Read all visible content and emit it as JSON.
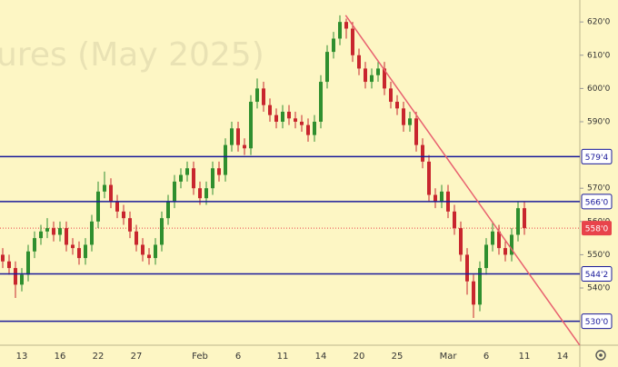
{
  "chart_data": {
    "type": "candlestick",
    "watermark": "ures (May 2025)",
    "categories": [
      null,
      null,
      null,
      "13",
      null,
      null,
      null,
      null,
      null,
      "16",
      null,
      null,
      null,
      null,
      null,
      "22",
      null,
      null,
      null,
      null,
      null,
      "27",
      null,
      null,
      null,
      null,
      null,
      null,
      null,
      null,
      null,
      "Feb",
      null,
      null,
      null,
      null,
      null,
      "6",
      null,
      null,
      null,
      null,
      null,
      null,
      "11",
      null,
      null,
      null,
      null,
      null,
      "14",
      null,
      null,
      null,
      null,
      null,
      "20",
      null,
      null,
      null,
      null,
      null,
      "25",
      null,
      null,
      null,
      null,
      null,
      null,
      null,
      "Mar",
      null,
      null,
      null,
      null,
      null,
      "6",
      null,
      null,
      null,
      null,
      null,
      "11",
      null,
      null,
      null,
      null,
      null,
      "14"
    ],
    "open": [
      550,
      548,
      546,
      541,
      544,
      551,
      555,
      557,
      558,
      556,
      558,
      553,
      552,
      549,
      553,
      560,
      569,
      571,
      566,
      563,
      561,
      557,
      553,
      550,
      549,
      553,
      561,
      566,
      572,
      574,
      576,
      570,
      567,
      570,
      576,
      574,
      583,
      588,
      583,
      582,
      596,
      600,
      595,
      592,
      590,
      593,
      591,
      590,
      589,
      586,
      590,
      602,
      611,
      615,
      620,
      618,
      610,
      606,
      602,
      604,
      606,
      600,
      596,
      594,
      589,
      591,
      583,
      578,
      568,
      566,
      569,
      563,
      558,
      550,
      542,
      535,
      546,
      553,
      557,
      552,
      550,
      556,
      564,
      null,
      null,
      null,
      null,
      null,
      null
    ],
    "high": [
      552,
      550,
      548,
      546,
      553,
      557,
      559,
      561,
      560,
      560,
      560,
      555,
      554,
      555,
      562,
      572,
      575,
      573,
      568,
      565,
      563,
      559,
      555,
      552,
      555,
      563,
      568,
      574,
      576,
      578,
      578,
      572,
      572,
      578,
      578,
      585,
      590,
      590,
      585,
      598,
      603,
      602,
      597,
      594,
      595,
      595,
      593,
      592,
      591,
      592,
      604,
      613,
      617,
      622,
      621,
      620,
      612,
      608,
      606,
      608,
      608,
      602,
      598,
      596,
      593,
      593,
      585,
      580,
      570,
      571,
      571,
      565,
      560,
      552,
      544,
      548,
      555,
      560,
      559,
      554,
      558,
      566,
      566,
      null,
      null,
      null,
      null,
      null,
      null
    ],
    "low": [
      546,
      544,
      537,
      539,
      542,
      549,
      553,
      555,
      554,
      554,
      551,
      550,
      547,
      547,
      551,
      558,
      567,
      564,
      561,
      559,
      555,
      551,
      548,
      547,
      547,
      551,
      559,
      564,
      570,
      572,
      568,
      565,
      565,
      568,
      572,
      572,
      581,
      581,
      580,
      580,
      594,
      593,
      590,
      588,
      588,
      589,
      588,
      587,
      584,
      584,
      588,
      600,
      609,
      613,
      615,
      608,
      604,
      600,
      600,
      602,
      598,
      594,
      592,
      587,
      587,
      581,
      576,
      566,
      564,
      564,
      561,
      556,
      548,
      538,
      531,
      533,
      544,
      551,
      550,
      548,
      548,
      554,
      556,
      null,
      null,
      null,
      null,
      null,
      null
    ],
    "close": [
      548,
      546,
      541,
      544,
      551,
      555,
      557,
      558,
      556,
      558,
      553,
      552,
      549,
      553,
      560,
      569,
      571,
      566,
      563,
      561,
      557,
      553,
      550,
      549,
      553,
      561,
      566,
      572,
      574,
      576,
      570,
      567,
      570,
      576,
      574,
      583,
      588,
      583,
      582,
      596,
      600,
      595,
      592,
      590,
      593,
      591,
      590,
      589,
      586,
      590,
      602,
      611,
      615,
      620,
      618,
      610,
      606,
      602,
      604,
      606,
      600,
      596,
      594,
      589,
      591,
      583,
      578,
      568,
      566,
      569,
      563,
      558,
      550,
      542,
      535,
      546,
      553,
      557,
      552,
      550,
      556,
      564,
      558,
      null,
      null,
      null,
      null,
      null,
      null
    ],
    "up_color": "#2f8f2f",
    "down_color": "#c8262e",
    "ylim": [
      522.8,
      626.6
    ],
    "yticks": [
      {
        "value": 620,
        "label": "620'0"
      },
      {
        "value": 610,
        "label": "610'0"
      },
      {
        "value": 600,
        "label": "600'0"
      },
      {
        "value": 590,
        "label": "590'0"
      },
      {
        "value": 570,
        "label": "570'0"
      },
      {
        "value": 560,
        "label": "560'0"
      },
      {
        "value": 550,
        "label": "550'0"
      },
      {
        "value": 540,
        "label": "540'0"
      }
    ],
    "levels": {
      "values": [
        579.5,
        566,
        544.25,
        530
      ],
      "value_labels": [
        "579'4",
        "566'0",
        "544'2",
        "530'0"
      ],
      "color": "#1a1a9a"
    },
    "trendline": {
      "x": [
        53.9,
        90.7
      ],
      "y": [
        622,
        522.8
      ],
      "color": "#e8616f"
    },
    "last_price": {
      "value": 558,
      "label": "558'0",
      "color": "#e8434b"
    }
  }
}
